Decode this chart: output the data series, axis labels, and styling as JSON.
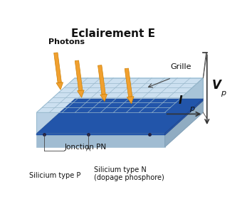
{
  "title": "Eclairement E",
  "title_fontsize": 11,
  "title_fontweight": "bold",
  "bg_color": "#ffffff",
  "labels": {
    "photons": "Photons",
    "grille": "Grille",
    "jonction": "Jonction PN",
    "silicium_p": "Silicium type P",
    "silicium_n": "Silicium type N\n(dopage phosphore)"
  },
  "colors": {
    "top_face": "#cce0f0",
    "top_face_light": "#daeaf8",
    "top_front": "#b8d0e4",
    "top_right": "#a8c4d8",
    "grid_line": "#9ab8cc",
    "junction_line": "#2255aa",
    "junction_front": "#4477bb",
    "bot_face": "#b8d0e6",
    "bot_front": "#a0bcd2",
    "bot_right": "#90acc2",
    "arrow_fill": "#f0a030",
    "arrow_edge": "#d08000",
    "text_dark": "#111111",
    "line_color": "#444444"
  }
}
